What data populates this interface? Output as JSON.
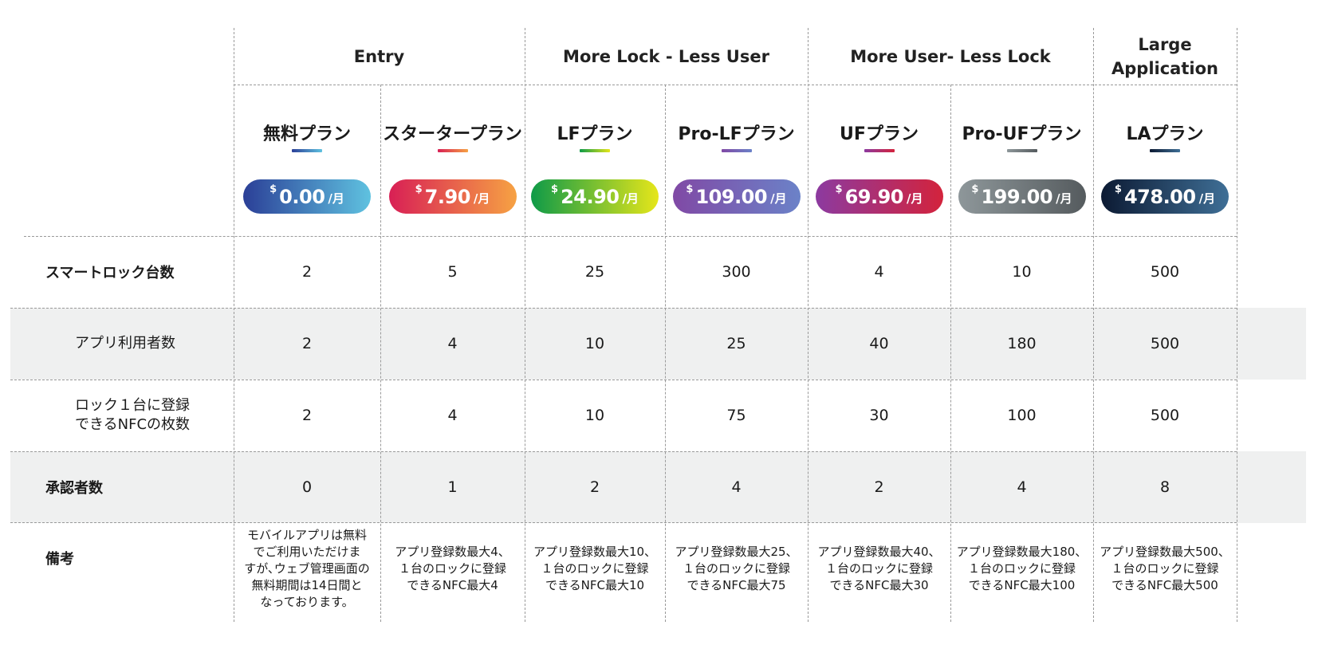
{
  "groups": [
    {
      "label": "Entry"
    },
    {
      "label": "More Lock - Less User"
    },
    {
      "label": "More User- Less Lock"
    },
    {
      "label": "Large\nApplication"
    }
  ],
  "plans": [
    {
      "name": "無料プラン",
      "currency": "$",
      "price": "0.00",
      "per": "/月",
      "gradient": [
        "#2b3f97",
        "#5fc2e0"
      ],
      "underline": [
        "#2b3f97",
        "#5fc2e0"
      ]
    },
    {
      "name": "スタータープラン",
      "currency": "$",
      "price": "7.90",
      "per": "/月",
      "gradient": [
        "#d81f55",
        "#f6a243"
      ],
      "underline": [
        "#d81f55",
        "#f6a243"
      ]
    },
    {
      "name": "LFプラン",
      "currency": "$",
      "price": "24.90",
      "per": "/月",
      "gradient": [
        "#0e9a48",
        "#e6e61a"
      ],
      "underline": [
        "#0e9a48",
        "#e6e61a"
      ]
    },
    {
      "name": "Pro-LFプラン",
      "currency": "$",
      "price": "109.00",
      "per": "/月",
      "gradient": [
        "#8049a5",
        "#6b82c8"
      ],
      "underline": [
        "#8049a5",
        "#6b82c8"
      ]
    },
    {
      "name": "UFプラン",
      "currency": "$",
      "price": "69.90",
      "per": "/月",
      "gradient": [
        "#8c3aa0",
        "#d3233c"
      ],
      "underline": [
        "#8c3aa0",
        "#d3233c"
      ]
    },
    {
      "name": "Pro-UFプラン",
      "currency": "$",
      "price": "199.00",
      "per": "/月",
      "gradient": [
        "#8e979a",
        "#555b5e"
      ],
      "underline": [
        "#8e979a",
        "#555b5e"
      ]
    },
    {
      "name": "LAプラン",
      "currency": "$",
      "price": "478.00",
      "per": "/月",
      "gradient": [
        "#0c1a33",
        "#3f6f96"
      ],
      "underline": [
        "#0c1a33",
        "#3f6f96"
      ]
    }
  ],
  "rows": [
    {
      "label": "スマートロック台数",
      "style": "bold",
      "values": [
        "2",
        "5",
        "25",
        "300",
        "4",
        "10",
        "500"
      ]
    },
    {
      "label": "アプリ利用者数",
      "style": "indent",
      "values": [
        "2",
        "4",
        "10",
        "25",
        "40",
        "180",
        "500"
      ]
    },
    {
      "label": "ロック１台に登録\nできるNFCの枚数",
      "style": "indent",
      "values": [
        "2",
        "4",
        "10",
        "75",
        "30",
        "100",
        "500"
      ]
    },
    {
      "label": "承認者数",
      "style": "bold",
      "values": [
        "0",
        "1",
        "2",
        "4",
        "2",
        "4",
        "8"
      ]
    }
  ],
  "remarks": {
    "label": "備考",
    "values": [
      "モバイルアプリは無料\nでご利用いただけま\nすが､ウェブ管理画面の\n無料期間は14日間と\nなっております。",
      "アプリ登録数最大4、\n１台のロックに登録\nできるNFC最大4",
      "アプリ登録数最大10、\n１台のロックに登録\nできるNFC最大10",
      "アプリ登録数最大25、\n１台のロックに登録\nできるNFC最大75",
      "アプリ登録数最大40、\n１台のロックに登録\nできるNFC最大30",
      "アプリ登録数最大180、\n１台のロックに登録\nできるNFC最大100",
      "アプリ登録数最大500、\n１台のロックに登録\nできるNFC最大500"
    ]
  }
}
